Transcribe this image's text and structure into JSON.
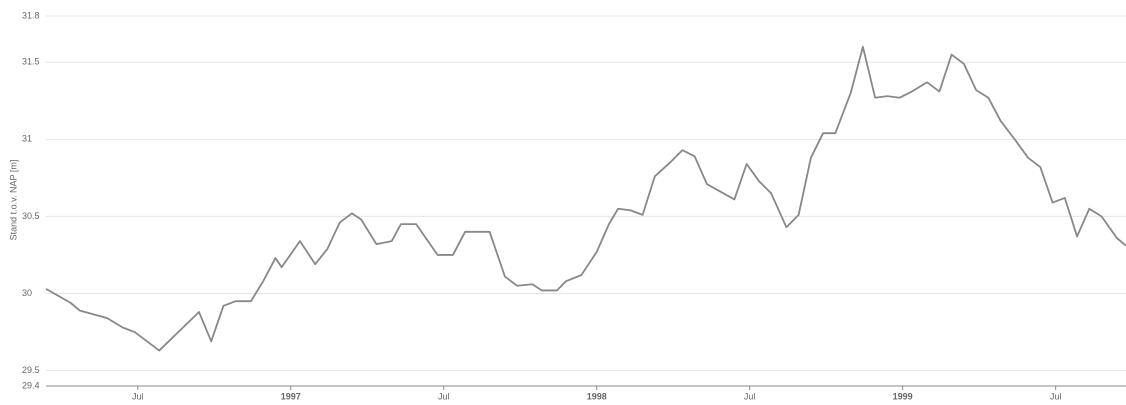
{
  "chart_data": {
    "type": "line",
    "y_label": "Stand t.o.v. NAP [m]",
    "x": [
      1996.2,
      1996.28,
      1996.31,
      1996.4,
      1996.45,
      1996.49,
      1996.53,
      1996.57,
      1996.7,
      1996.74,
      1996.78,
      1996.82,
      1996.87,
      1996.91,
      1996.95,
      1996.97,
      1997.03,
      1997.08,
      1997.12,
      1997.16,
      1997.2,
      1997.23,
      1997.28,
      1997.33,
      1997.36,
      1997.41,
      1997.48,
      1997.53,
      1997.57,
      1997.65,
      1997.7,
      1997.74,
      1997.79,
      1997.82,
      1997.87,
      1997.9,
      1997.95,
      1998.0,
      1998.04,
      1998.07,
      1998.11,
      1998.15,
      1998.19,
      1998.24,
      1998.28,
      1998.32,
      1998.36,
      1998.45,
      1998.49,
      1998.53,
      1998.57,
      1998.62,
      1998.66,
      1998.7,
      1998.74,
      1998.78,
      1998.83,
      1998.87,
      1998.91,
      1998.95,
      1998.99,
      1999.03,
      1999.08,
      1999.12,
      1999.16,
      1999.2,
      1999.24,
      1999.28,
      1999.32,
      1999.37,
      1999.41,
      1999.45,
      1999.49,
      1999.53,
      1999.57,
      1999.61,
      1999.65,
      1999.7,
      1999.73
    ],
    "series": [
      {
        "name": "Stand",
        "color": "#888888",
        "values": [
          30.03,
          29.94,
          29.89,
          29.84,
          29.78,
          29.75,
          29.69,
          29.63,
          29.88,
          29.69,
          29.92,
          29.95,
          29.95,
          30.08,
          30.23,
          30.17,
          30.34,
          30.19,
          30.29,
          30.46,
          30.52,
          30.48,
          30.32,
          30.34,
          30.45,
          30.45,
          30.25,
          30.25,
          30.4,
          30.4,
          30.11,
          30.05,
          30.06,
          30.02,
          30.02,
          30.08,
          30.12,
          30.27,
          30.45,
          30.55,
          30.54,
          30.51,
          30.76,
          30.85,
          30.93,
          30.89,
          30.71,
          30.61,
          30.84,
          30.73,
          30.65,
          30.43,
          30.51,
          30.88,
          31.04,
          31.04,
          31.3,
          31.6,
          31.27,
          31.28,
          31.27,
          31.31,
          31.37,
          31.31,
          31.55,
          31.49,
          31.32,
          31.27,
          31.12,
          30.99,
          30.88,
          30.82,
          30.59,
          30.62,
          30.37,
          30.55,
          30.5,
          30.36,
          30.31
        ]
      }
    ],
    "xlim": [
      1996.2,
      1999.73
    ],
    "xticks": [
      {
        "value": 1996.5,
        "label": "Jul"
      },
      {
        "value": 1997,
        "label": "1997"
      },
      {
        "value": 1997.5,
        "label": "Jul"
      },
      {
        "value": 1998,
        "label": "1998"
      },
      {
        "value": 1998.5,
        "label": "Jul"
      },
      {
        "value": 1999,
        "label": "1999"
      },
      {
        "value": 1999.5,
        "label": "Jul"
      }
    ],
    "ylim": [
      29.4,
      31.8
    ],
    "yticks": [
      29.4,
      29.5,
      30,
      30.5,
      31,
      31.5,
      31.8
    ],
    "grid": true
  }
}
